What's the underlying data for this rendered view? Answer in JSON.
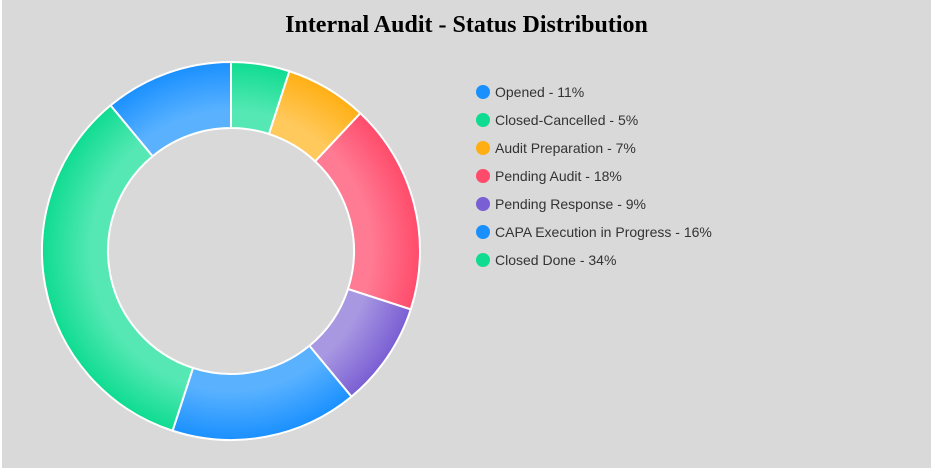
{
  "chart_data": {
    "type": "pie",
    "title": "Internal Audit - Status Distribution",
    "categories": [
      "Opened",
      "Closed-Cancelled",
      "Audit Preparation",
      "Pending Audit",
      "Pending Response",
      "CAPA Execution in Progress",
      "Closed Done"
    ],
    "values": [
      11,
      5,
      7,
      18,
      9,
      16,
      34
    ],
    "legend_labels": [
      "Opened - 11%",
      "Closed-Cancelled - 5%",
      "Audit Preparation - 7%",
      "Pending Audit - 18%",
      "Pending Response - 9%",
      "CAPA Execution in Progress - 16%",
      "Closed Done - 34%"
    ],
    "colors": [
      "#1a90ff",
      "#0fdc91",
      "#ffaf14",
      "#ff4b6b",
      "#7a5ed3",
      "#1a90ff",
      "#0fdc91"
    ],
    "inner_colors": [
      "#5ab2ff",
      "#55e8b4",
      "#ffc95c",
      "#ff7b93",
      "#a898e2",
      "#5ab2ff",
      "#55e8b4"
    ],
    "donut": true,
    "legend_position": "right"
  }
}
